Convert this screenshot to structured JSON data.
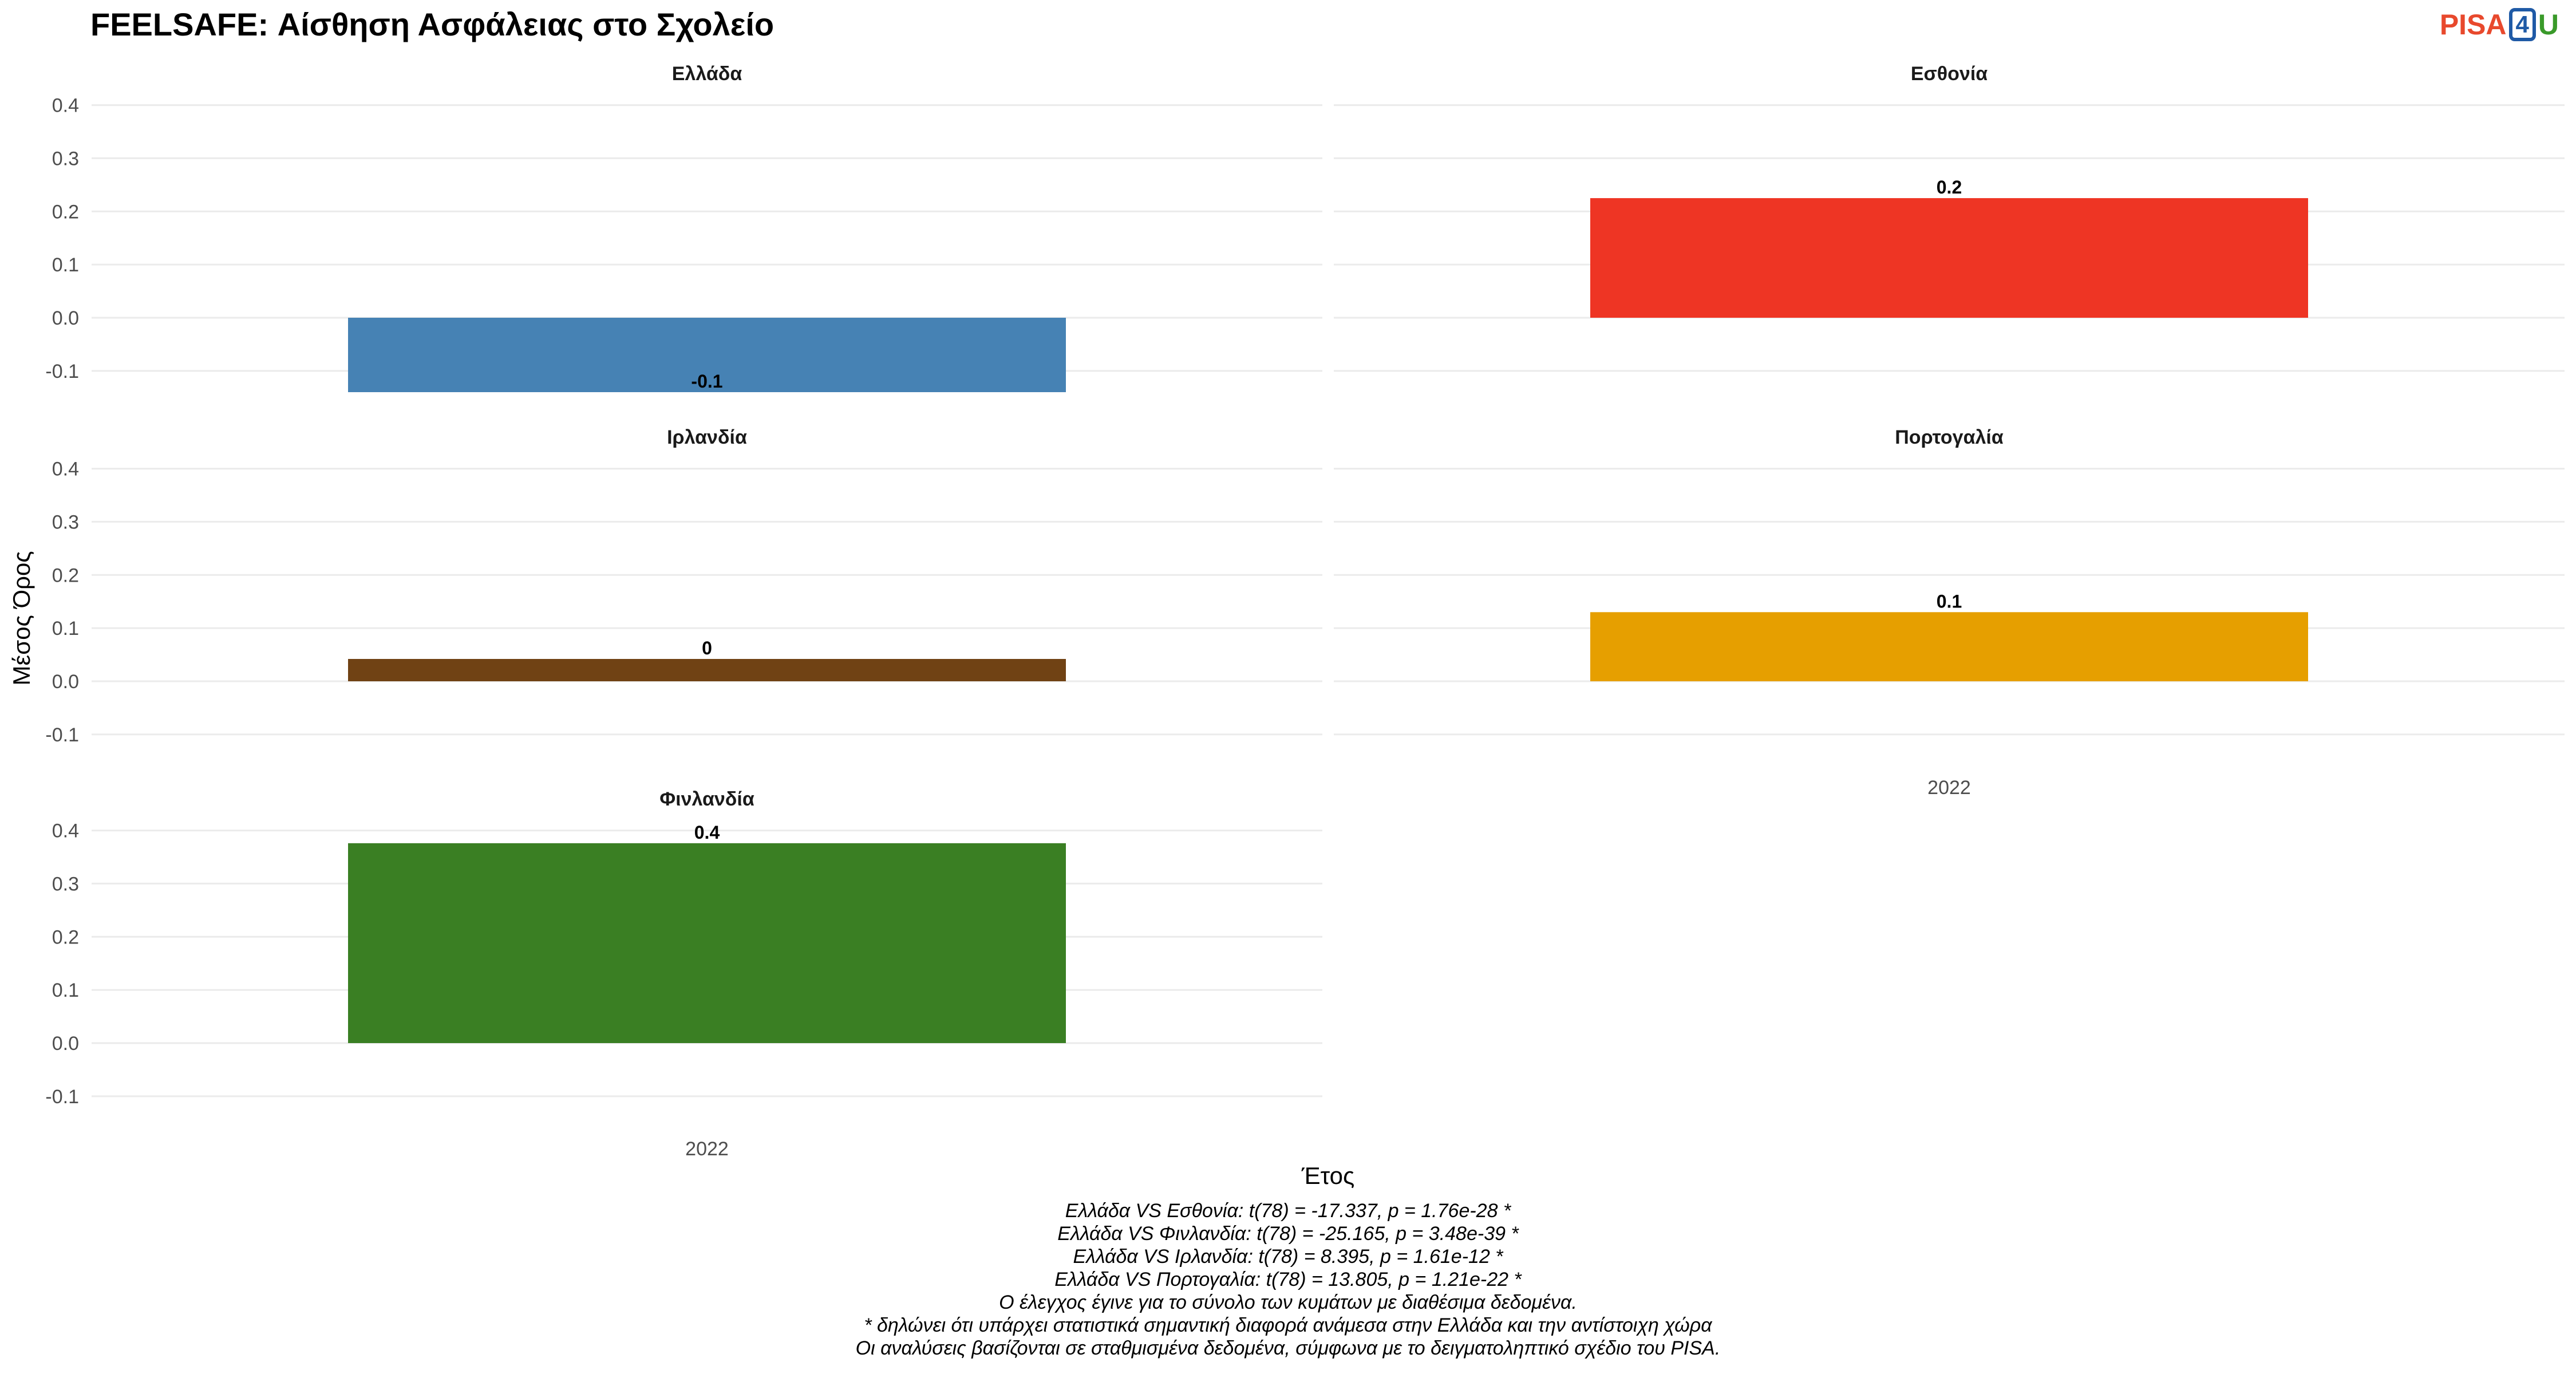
{
  "title": "FEELSAFE: Αίσθηση Ασφάλειας στο Σχολείο",
  "logo": {
    "part1": "PISA",
    "part2": "4",
    "part3": "U"
  },
  "chart_data": {
    "type": "bar",
    "xlabel": "Έτος",
    "ylabel": "Μέσος Όρος",
    "ylim": [
      -0.14,
      0.42
    ],
    "yticks": [
      -0.1,
      0.0,
      0.1,
      0.2,
      0.3,
      0.4
    ],
    "ytick_labels": [
      "-0.1",
      "0.0",
      "0.1",
      "0.2",
      "0.3",
      "0.4"
    ],
    "category": "2022",
    "facets": [
      {
        "name": "Ελλάδα",
        "value": -0.14,
        "label": "-0.1",
        "color": "#4682b4"
      },
      {
        "name": "Εσθονία",
        "value": 0.225,
        "label": "0.2",
        "color": "#ee3524"
      },
      {
        "name": "Ιρλανδία",
        "value": 0.042,
        "label": "0",
        "color": "#704214"
      },
      {
        "name": "Πορτογαλία",
        "value": 0.13,
        "label": "0.1",
        "color": "#e69f00"
      },
      {
        "name": "Φινλανδία",
        "value": 0.376,
        "label": "0.4",
        "color": "#3a7f23"
      }
    ]
  },
  "caption_lines": [
    "Ελλάδα VS Εσθονία: t(78) = -17.337, p = 1.76e-28 *",
    "Ελλάδα VS Φινλανδία: t(78) = -25.165, p = 3.48e-39 *",
    "Ελλάδα VS Ιρλανδία: t(78) = 8.395, p = 1.61e-12 *",
    "Ελλάδα VS Πορτογαλία: t(78) = 13.805, p = 1.21e-22 *",
    "Ο έλεγχος έγινε για το σύνολο των κυμάτων με διαθέσιμα δεδομένα.",
    "* δηλώνει ότι υπάρχει στατιστικά σημαντική διαφορά ανάμεσα στην Ελλάδα και την αντίστοιχη χώρα",
    "Οι αναλύσεις βασίζονται σε σταθμισμένα δεδομένα, σύμφωνα με το δειγματοληπτικό σχέδιο του PISA."
  ]
}
